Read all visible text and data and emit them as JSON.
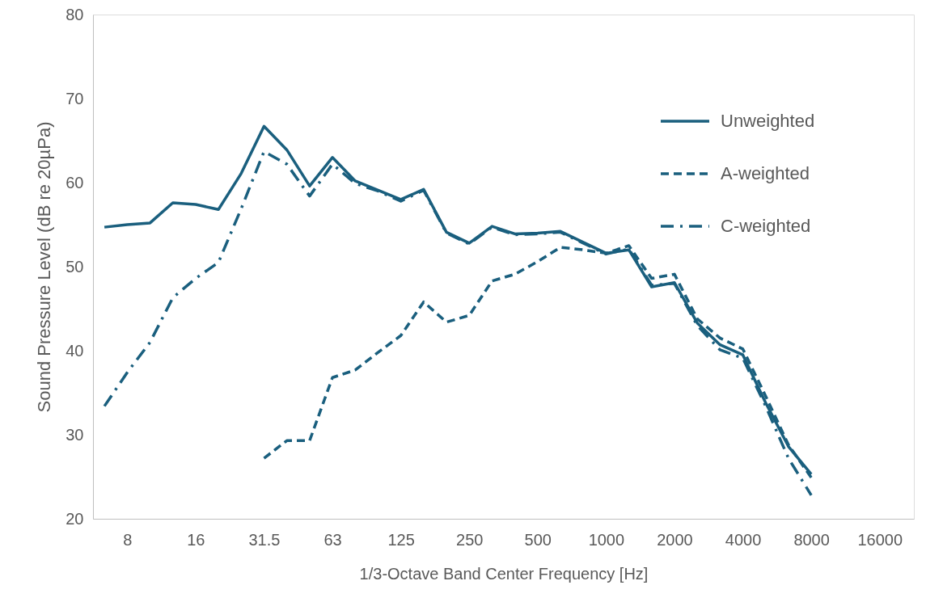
{
  "chart_data": {
    "type": "line",
    "xlabel": "1/3-Octave Band Center Frequency [Hz]",
    "ylabel": "Sound Pressure Level (dB re 20µPa)",
    "categories": [
      null,
      "8",
      null,
      null,
      "16",
      null,
      null,
      "31.5",
      null,
      null,
      "63",
      null,
      null,
      "125",
      null,
      null,
      "250",
      null,
      null,
      "500",
      null,
      null,
      "1000",
      null,
      null,
      "2000",
      null,
      null,
      "4000",
      null,
      null,
      "8000",
      null,
      null,
      "16000",
      null
    ],
    "series": [
      {
        "name": "Unweighted",
        "color": "#1a5f7e",
        "line_style": "solid",
        "values": [
          54.7,
          55.0,
          55.2,
          57.6,
          57.4,
          56.8,
          61.1,
          66.7,
          63.9,
          59.6,
          63.0,
          60.2,
          59.1,
          58.0,
          59.2,
          54.1,
          52.8,
          54.8,
          53.9,
          54.0,
          54.2,
          52.9,
          51.6,
          52.0,
          47.6,
          48.1,
          43.3,
          40.7,
          39.5,
          33.8,
          28.6,
          25.3,
          null,
          null,
          null,
          null
        ]
      },
      {
        "name": "A-weighted",
        "color": "#1a5f7e",
        "line_style": "dashed",
        "values": [
          null,
          null,
          null,
          null,
          null,
          null,
          null,
          27.2,
          29.3,
          29.3,
          36.8,
          37.7,
          39.8,
          41.8,
          45.8,
          43.4,
          44.2,
          48.3,
          49.1,
          50.6,
          52.3,
          52.0,
          51.6,
          52.5,
          48.6,
          49.1,
          43.8,
          41.5,
          40.2,
          34.6,
          28.8,
          24.9,
          null,
          null,
          null,
          null
        ]
      },
      {
        "name": "C-weighted",
        "color": "#1a5f7e",
        "line_style": "dashdot",
        "values": [
          33.4,
          37.4,
          41.0,
          46.3,
          48.6,
          50.5,
          56.9,
          63.7,
          62.2,
          58.4,
          62.2,
          59.9,
          59.0,
          57.8,
          59.1,
          54.0,
          52.7,
          54.7,
          53.8,
          53.9,
          54.1,
          52.8,
          51.5,
          52.1,
          47.8,
          48.0,
          43.0,
          40.1,
          39.1,
          33.4,
          27.2,
          22.8,
          null,
          null,
          null,
          null
        ]
      }
    ],
    "ylim": [
      20,
      80
    ],
    "yticks": [
      20,
      30,
      40,
      50,
      60,
      70,
      80
    ],
    "grid": false,
    "legend": "top right"
  }
}
